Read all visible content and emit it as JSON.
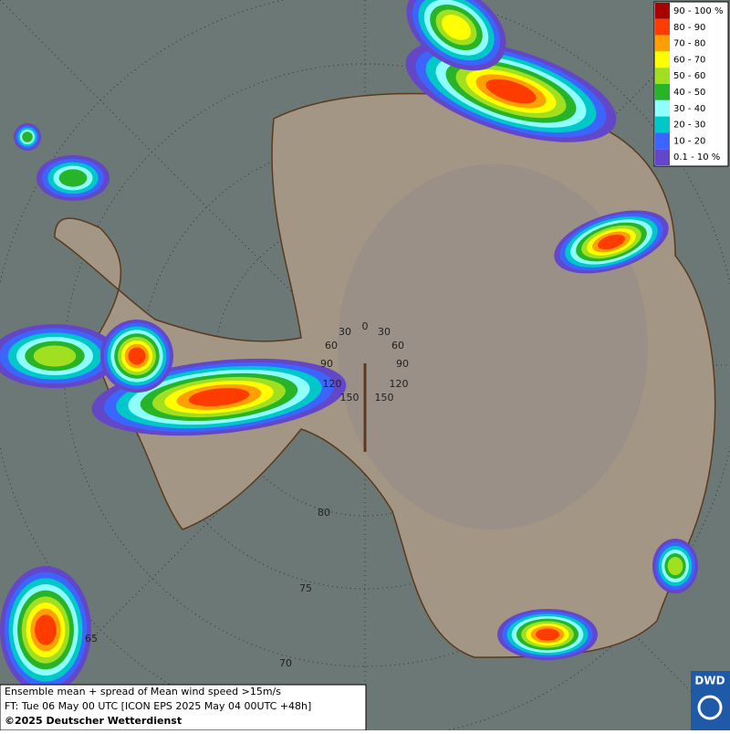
{
  "legend": {
    "items": [
      {
        "label": "90 - 100 %",
        "color": "#a80000"
      },
      {
        "label": "80 - 90",
        "color": "#ff3c00"
      },
      {
        "label": "70 - 80",
        "color": "#ffa000"
      },
      {
        "label": "60 - 70",
        "color": "#ffff00"
      },
      {
        "label": "50 - 60",
        "color": "#a0e020"
      },
      {
        "label": "40 - 50",
        "color": "#28b428"
      },
      {
        "label": "30 - 40",
        "color": "#90ffff"
      },
      {
        "label": "20 - 30",
        "color": "#00c8c8"
      },
      {
        "label": "10 - 20",
        "color": "#3c64ff"
      },
      {
        "label": "0.1 - 10 %",
        "color": "#6446c8"
      }
    ]
  },
  "graticule_labels": [
    "0",
    "30",
    "30",
    "60",
    "60",
    "90",
    "90",
    "120",
    "120",
    "150",
    "150",
    "80",
    "75",
    "70",
    "65"
  ],
  "info": {
    "lines": [
      "Ensemble mean + spread of Mean wind speed >15m/s",
      "FT: Tue 06 May 00 UTC [ICON EPS 2025 May 04 00UTC +48h]",
      "©2025 Deutscher Wetterdienst"
    ]
  },
  "logo": "DWD"
}
